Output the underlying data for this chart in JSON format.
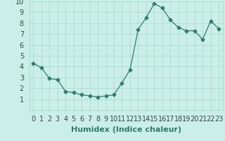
{
  "x": [
    0,
    1,
    2,
    3,
    4,
    5,
    6,
    7,
    8,
    9,
    10,
    11,
    12,
    13,
    14,
    15,
    16,
    17,
    18,
    19,
    20,
    21,
    22,
    23
  ],
  "y": [
    4.3,
    3.9,
    2.9,
    2.8,
    1.7,
    1.6,
    1.4,
    1.3,
    1.2,
    1.3,
    1.4,
    2.5,
    3.7,
    7.4,
    8.5,
    9.8,
    9.4,
    8.3,
    7.6,
    7.3,
    7.3,
    6.5,
    8.2,
    7.5
  ],
  "line_color": "#2d7d6e",
  "marker": "D",
  "marker_size": 2.5,
  "bg_color": "#cceee8",
  "grid_color": "#aaddcc",
  "xlabel": "Humidex (Indice chaleur)",
  "ylim": [
    0,
    10
  ],
  "xlim": [
    -0.5,
    23.5
  ],
  "xticks": [
    0,
    1,
    2,
    3,
    4,
    5,
    6,
    7,
    8,
    9,
    10,
    11,
    12,
    13,
    14,
    15,
    16,
    17,
    18,
    19,
    20,
    21,
    22,
    23
  ],
  "yticks": [
    1,
    2,
    3,
    4,
    5,
    6,
    7,
    8,
    9,
    10
  ],
  "xlabel_fontsize": 8,
  "tick_fontsize": 7
}
